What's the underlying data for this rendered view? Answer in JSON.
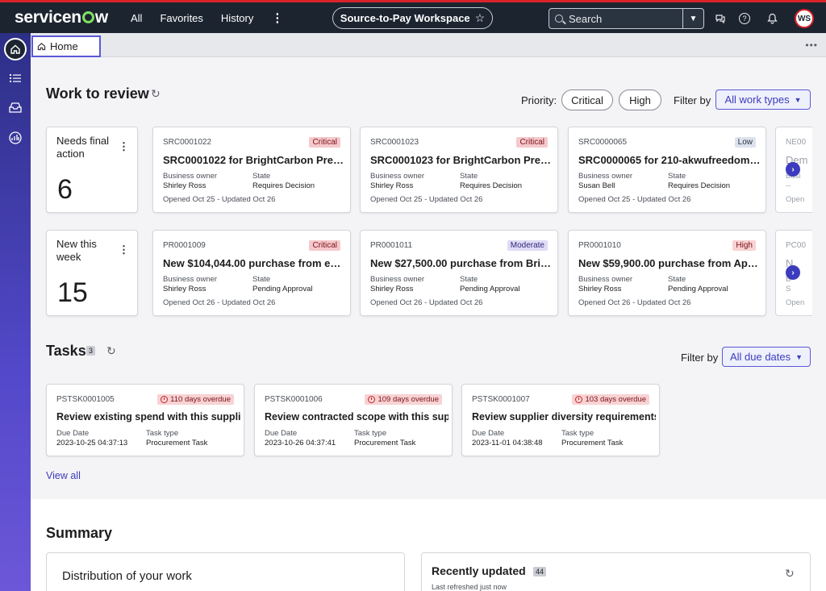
{
  "topbar": {
    "logo": "servicenow",
    "nav": [
      "All",
      "Favorites",
      "History"
    ],
    "more": "⋮",
    "workspace": "Source-to-Pay Workspace",
    "search_label": "Search",
    "avatar_initials": "WS"
  },
  "tabs": {
    "home_label": "Home",
    "more": "•••"
  },
  "work_to_review": {
    "title": "Work to review",
    "priority_label": "Priority:",
    "priority_options": [
      "Critical",
      "High"
    ],
    "filter_label": "Filter by",
    "filter_value": "All work types",
    "stats": [
      {
        "label": "Needs final action",
        "value": "6"
      },
      {
        "label": "New this week",
        "value": "15"
      }
    ],
    "row1": [
      {
        "id": "SRC0001022",
        "badge": "Critical",
        "title": "SRC0001022 for BrightCarbon Presen...",
        "k1": "Business owner",
        "v1": "Shirley Ross",
        "k2": "State",
        "v2": "Requires Decision",
        "footer": "Opened Oct 25 - Updated Oct 26"
      },
      {
        "id": "SRC0001023",
        "badge": "Critical",
        "title": "SRC0001023 for BrightCarbon Presen...",
        "k1": "Business owner",
        "v1": "Shirley Ross",
        "k2": "State",
        "v2": "Requires Decision",
        "footer": "Opened Oct 25 - Updated Oct 26"
      },
      {
        "id": "SRC0000065",
        "badge": "Low",
        "title": "SRC0000065 for 210-akwufreedom a...",
        "k1": "Business owner",
        "v1": "Susan Bell",
        "k2": "State",
        "v2": "Requires Decision",
        "footer": "Opened Oct 25 - Updated Oct 26"
      }
    ],
    "row1_partial": {
      "id": "NE00",
      "title": "Dem",
      "k1": "Busi",
      "v1": "--",
      "footer": "Open"
    },
    "row2": [
      {
        "id": "PR0001009",
        "badge": "Critical",
        "title": "New $104,044.00 purchase from ePlu...",
        "k1": "Business owner",
        "v1": "Shirley Ross",
        "k2": "State",
        "v2": "Pending Approval",
        "footer": "Opened Oct 26 - Updated Oct 26"
      },
      {
        "id": "PR0001011",
        "badge": "Moderate",
        "title": "New $27,500.00 purchase from Brigh...",
        "k1": "Business owner",
        "v1": "Shirley Ross",
        "k2": "State",
        "v2": "Pending Approval",
        "footer": "Opened Oct 26 - Updated Oct 26"
      },
      {
        "id": "PR0001010",
        "badge": "High",
        "title": "New $59,900.00 purchase from Apple...",
        "k1": "Business owner",
        "v1": "Shirley Ross",
        "k2": "State",
        "v2": "Pending Approval",
        "footer": "Opened Oct 26 - Updated Oct 26"
      }
    ],
    "row2_partial": {
      "id": "PC00",
      "title": "N",
      "k1": "B",
      "v1": "S",
      "footer": "Open"
    }
  },
  "tasks": {
    "title": "Tasks",
    "count": "3",
    "filter_label": "Filter by",
    "filter_value": "All due dates",
    "items": [
      {
        "id": "PSTSK0001005",
        "overdue": "110 days overdue",
        "title": "Review existing spend with this supplier",
        "k1": "Due Date",
        "v1": "2023-10-25 04:37:13",
        "k2": "Task type",
        "v2": "Procurement Task"
      },
      {
        "id": "PSTSK0001006",
        "overdue": "109 days overdue",
        "title": "Review contracted scope with this suppl",
        "k1": "Due Date",
        "v1": "2023-10-26 04:37:41",
        "k2": "Task type",
        "v2": "Procurement Task"
      },
      {
        "id": "PSTSK0001007",
        "overdue": "103 days overdue",
        "title": "Review supplier diversity requirements",
        "k1": "Due Date",
        "v1": "2023-11-01 04:38:48",
        "k2": "Task type",
        "v2": "Procurement Task"
      }
    ],
    "view_all": "View all"
  },
  "summary": {
    "title": "Summary",
    "distribution_title": "Distribution of your work",
    "recent_title": "Recently updated",
    "recent_count": "44",
    "recent_sub": "Last refreshed just now"
  },
  "colors": {
    "accent": "#3d3bbd",
    "brand_bar": "#1c2430",
    "critical": "#f5c9cc",
    "sidebar": "#5248c9"
  }
}
